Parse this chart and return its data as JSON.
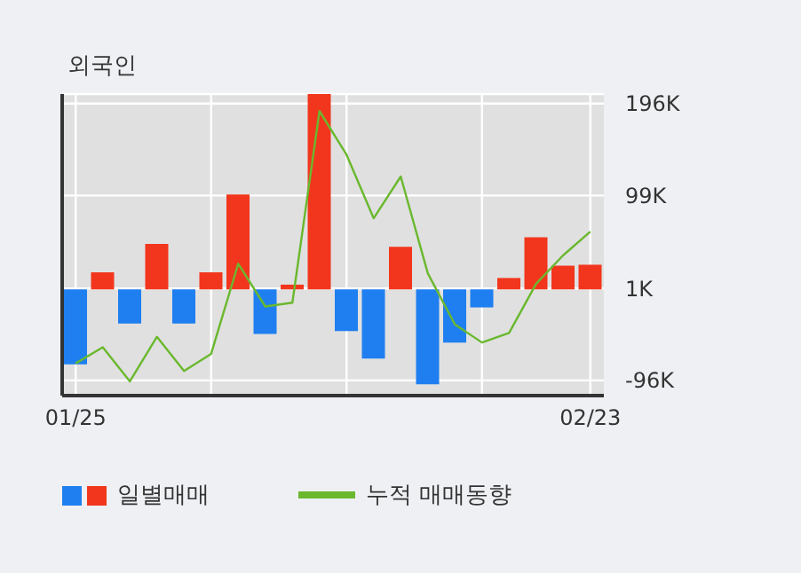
{
  "chart_data": {
    "type": "bar",
    "title": "외국인",
    "categories": [
      "01/25",
      null,
      null,
      null,
      null,
      null,
      null,
      null,
      null,
      null,
      null,
      null,
      null,
      null,
      null,
      null,
      null,
      null,
      null,
      "02/23"
    ],
    "series": [
      {
        "name": "일별매매",
        "colors": [
          "#1f7ff0",
          "#f2361d",
          "#1f7ff0",
          "#f2361d",
          "#1f7ff0",
          "#f2361d",
          "#f2361d",
          "#1f7ff0",
          "#f2361d",
          "#f2361d",
          "#1f7ff0",
          "#1f7ff0",
          "#f2361d",
          "#1f7ff0",
          "#1f7ff0",
          "#1f7ff0",
          "#f2361d",
          "#f2361d",
          "#f2361d",
          "#f2361d"
        ],
        "values": [
          -79,
          18,
          -36,
          48,
          -36,
          18,
          100,
          -47,
          5,
          206,
          -44,
          -73,
          45,
          -100,
          -56,
          -19,
          12,
          55,
          25,
          26
        ]
      },
      {
        "name": "누적 매매동향",
        "type": "line",
        "color": "#6ab82e",
        "values": [
          -78,
          -61,
          -97,
          -50,
          -86,
          -68,
          27,
          -18,
          -14,
          188,
          142,
          75,
          119,
          17,
          -37,
          -56,
          -46,
          6,
          36,
          61
        ]
      }
    ],
    "ylim": [
      -112,
      206
    ],
    "yticks": [
      {
        "value": -96,
        "label": "-96K"
      },
      {
        "value": 1,
        "label": "1K"
      },
      {
        "value": 99,
        "label": "99K"
      },
      {
        "value": 196,
        "label": "196K"
      }
    ],
    "grid": true,
    "legend": "bottom",
    "marker": "none",
    "line_style": "solid"
  }
}
